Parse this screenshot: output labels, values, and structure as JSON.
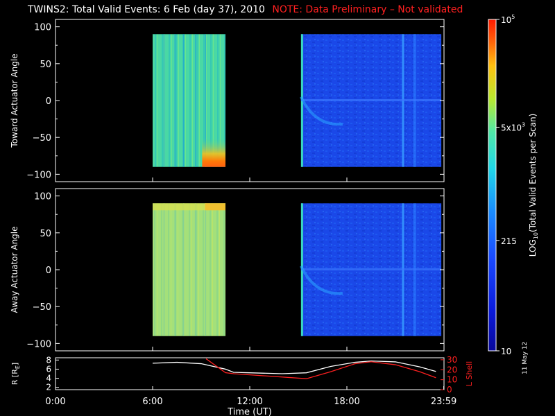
{
  "header": {
    "title": "TWINS2: Total Valid Events:  6 Feb (day  37), 2010",
    "note": "NOTE: Data Preliminary – Not validated"
  },
  "colors": {
    "note": "#ff2020",
    "r_line": "#ffffff",
    "lshell_line": "#ff2020",
    "frame": "#ffffff",
    "background": "#000000"
  },
  "chart_data": [
    {
      "type": "heatmap",
      "title": "",
      "ylabel": "Toward Actuator Angle",
      "ylim": [
        -110,
        110
      ],
      "y_ticks": [
        "100",
        "50",
        "0",
        "−50",
        "−100"
      ],
      "x_range_hours": [
        0,
        24
      ],
      "data_blocks": [
        {
          "start": "6:00",
          "end": "10:30",
          "y_range": [
            -90,
            90
          ],
          "level": "~1500-3000 events (green/cyan)",
          "hotspot": "~2e4-8e4 near -70..-90 deg, 9:10-10:30"
        },
        {
          "start": "15:10",
          "end": "23:50",
          "y_range": [
            -90,
            90
          ],
          "level": "~150-500 events (blue)"
        }
      ]
    },
    {
      "type": "heatmap",
      "title": "",
      "ylabel": "Away Actuator Angle",
      "ylim": [
        -110,
        110
      ],
      "y_ticks": [
        "100",
        "50",
        "0",
        "−50",
        "−100"
      ],
      "x_range_hours": [
        0,
        24
      ],
      "data_blocks": [
        {
          "start": "6:00",
          "end": "10:30",
          "y_range": [
            -90,
            90
          ],
          "level": "~2000-5000 events (yellow-green)"
        },
        {
          "start": "15:10",
          "end": "23:50",
          "y_range": [
            -90,
            90
          ],
          "level": "~150-500 events (blue)"
        }
      ]
    },
    {
      "type": "line",
      "ylabel": "R [R",
      "ylabel_sub": "E",
      "ylabel_end": "]",
      "ylim": [
        1.5,
        8.5
      ],
      "y_ticks": [
        "8",
        "6",
        "4",
        "2"
      ],
      "y2label": "L Shell",
      "y2lim": [
        0,
        32
      ],
      "y2_ticks": [
        "30",
        "20",
        "10",
        "0"
      ],
      "xlabel": "Time (UT)",
      "x_ticks": [
        "0:00",
        "6:00",
        "12:00",
        "18:00",
        "23:59"
      ],
      "series": [
        {
          "name": "R",
          "x_hours": [
            6.0,
            7.5,
            9.0,
            10.5,
            11.0,
            12.0,
            14.0,
            15.5,
            17.0,
            18.5,
            19.5,
            21.0,
            22.5,
            23.5
          ],
          "values": [
            7.3,
            7.5,
            7.2,
            6.0,
            5.3,
            5.2,
            5.0,
            5.2,
            6.6,
            7.5,
            7.8,
            7.6,
            6.5,
            5.5
          ]
        },
        {
          "name": "L Shell",
          "x_hours": [
            9.3,
            10.5,
            11.0,
            15.5,
            17.0,
            18.5,
            19.5,
            21.0,
            22.5,
            23.5
          ],
          "values": [
            31,
            17,
            16,
            11,
            18,
            26,
            28,
            25,
            18,
            12
          ]
        }
      ]
    }
  ],
  "colorbar": {
    "label_main": "LOG",
    "label_sub": "10",
    "label_rest": "(Total Valid  Events per Scan)",
    "ticks": [
      {
        "base": "10",
        "sup": "5",
        "value": 100000
      },
      {
        "base": "5x10",
        "sup": "3",
        "value": 5000
      },
      {
        "base": "215",
        "sup": "",
        "value": 215
      },
      {
        "base": "10",
        "sup": "",
        "value": 10
      }
    ]
  },
  "footer": {
    "date_stamp": "11 May 12"
  }
}
